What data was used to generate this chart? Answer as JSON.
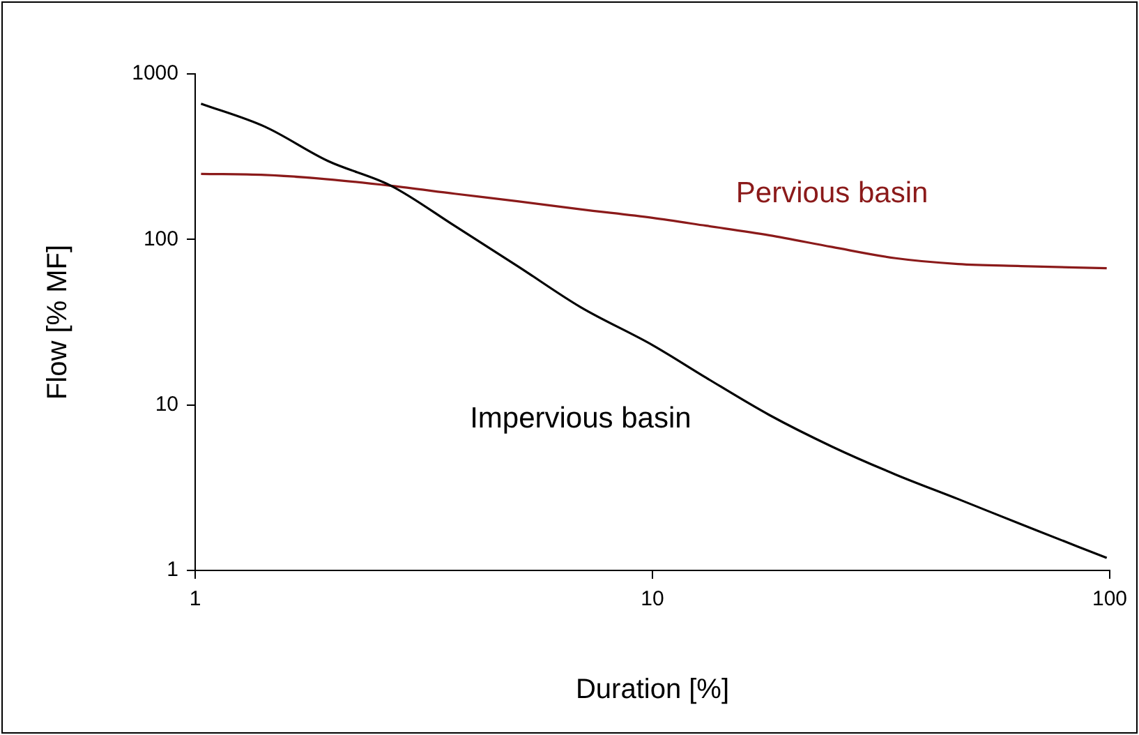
{
  "chart_data": {
    "type": "line",
    "xlabel": "Duration [%]",
    "ylabel": "Flow [% MF]",
    "log": "xy",
    "xlim": [
      1,
      100
    ],
    "xticks": [
      1,
      10,
      100
    ],
    "ylim": [
      1,
      1000
    ],
    "yticks": [
      1,
      10,
      100,
      1000
    ],
    "grid": false,
    "legend": false,
    "marker": "none",
    "line_style": "solid",
    "series": [
      {
        "name": "Impervious basin",
        "color": "#000000",
        "x": [
          1.03,
          1.42,
          1.95,
          2.68,
          3.69,
          5.07,
          6.96,
          10,
          13.1,
          18,
          24.7,
          34,
          46.6,
          64,
          98.5
        ],
        "values": [
          661,
          480,
          298,
          211,
          121,
          69,
          39,
          23,
          14.6,
          8.7,
          5.6,
          3.8,
          2.7,
          1.9,
          1.19
        ]
      },
      {
        "name": "Pervious basin",
        "color": "#8b1a1a",
        "x": [
          1.03,
          1.42,
          1.95,
          2.68,
          3.69,
          5.07,
          6.96,
          10,
          13.1,
          18,
          24.7,
          34,
          46.6,
          64,
          98.5
        ],
        "values": [
          249,
          245,
          231,
          211,
          189,
          170,
          152,
          135,
          121,
          106,
          90,
          77,
          71,
          69,
          67
        ]
      }
    ]
  }
}
